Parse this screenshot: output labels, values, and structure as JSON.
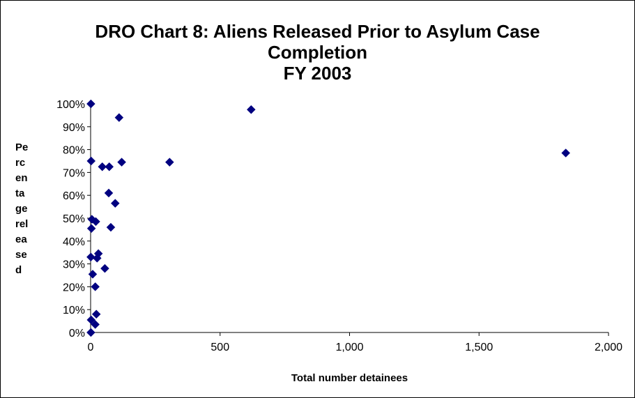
{
  "chart_data": {
    "type": "scatter",
    "title_lines": [
      "DRO Chart 8: Aliens Released Prior to Asylum Case",
      "Completion",
      "FY 2003"
    ],
    "xlabel": "Total number detainees",
    "ylabel_lines": [
      "Pe",
      "rc",
      "en",
      "ta",
      "ge",
      "rel",
      "ea",
      "se",
      "d"
    ],
    "xlim": [
      0,
      2000
    ],
    "ylim": [
      0,
      1
    ],
    "x_ticks": [
      0,
      500,
      1000,
      1500,
      2000
    ],
    "x_tick_labels": [
      "0",
      "500",
      "1,000",
      "1,500",
      "2,000"
    ],
    "y_ticks": [
      0,
      0.1,
      0.2,
      0.3,
      0.4,
      0.5,
      0.6,
      0.7,
      0.8,
      0.9,
      1.0
    ],
    "y_tick_labels": [
      "0%",
      "10%",
      "20%",
      "30%",
      "40%",
      "50%",
      "60%",
      "70%",
      "80%",
      "90%",
      "100%"
    ],
    "grid": false,
    "legend": "none",
    "marker_color": "#000080",
    "points": [
      {
        "x": 1,
        "y": 1.0
      },
      {
        "x": 620,
        "y": 0.975
      },
      {
        "x": 110,
        "y": 0.94
      },
      {
        "x": 1835,
        "y": 0.785
      },
      {
        "x": 2,
        "y": 0.75
      },
      {
        "x": 120,
        "y": 0.745
      },
      {
        "x": 305,
        "y": 0.745
      },
      {
        "x": 45,
        "y": 0.725
      },
      {
        "x": 72,
        "y": 0.725
      },
      {
        "x": 70,
        "y": 0.61
      },
      {
        "x": 95,
        "y": 0.565
      },
      {
        "x": 5,
        "y": 0.495
      },
      {
        "x": 20,
        "y": 0.485
      },
      {
        "x": 3,
        "y": 0.455
      },
      {
        "x": 78,
        "y": 0.46
      },
      {
        "x": 30,
        "y": 0.345
      },
      {
        "x": 1,
        "y": 0.33
      },
      {
        "x": 25,
        "y": 0.325
      },
      {
        "x": 55,
        "y": 0.28
      },
      {
        "x": 8,
        "y": 0.255
      },
      {
        "x": 18,
        "y": 0.2
      },
      {
        "x": 22,
        "y": 0.08
      },
      {
        "x": 2,
        "y": 0.055
      },
      {
        "x": 18,
        "y": 0.035
      },
      {
        "x": 1,
        "y": 0.0
      }
    ]
  }
}
